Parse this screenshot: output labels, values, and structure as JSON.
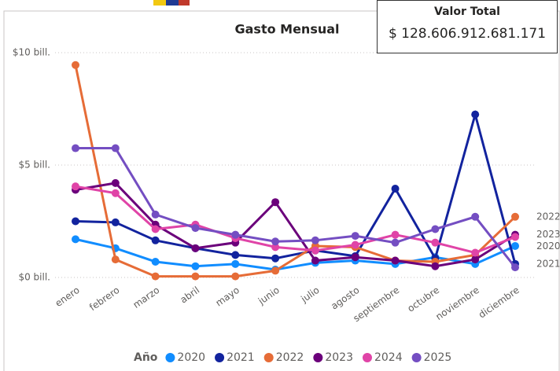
{
  "card": {
    "title": "Valor Total",
    "value": "$ 128.606.912.681.171"
  },
  "chart_data": {
    "type": "line",
    "title": "Gasto Mensual",
    "categories": [
      "enero",
      "febrero",
      "marzo",
      "abril",
      "mayo",
      "junio",
      "julio",
      "agosto",
      "septiembre",
      "octubre",
      "noviembre",
      "diciembre"
    ],
    "series": [
      {
        "name": "2020",
        "color": "#118dff",
        "values": [
          1.7,
          1.3,
          0.7,
          0.5,
          0.6,
          0.35,
          0.65,
          0.75,
          0.6,
          0.9,
          0.6,
          1.4
        ]
      },
      {
        "name": "2021",
        "color": "#12239e",
        "values": [
          2.5,
          2.45,
          1.65,
          1.3,
          1.0,
          0.85,
          1.2,
          0.95,
          3.95,
          0.85,
          7.25,
          0.6
        ]
      },
      {
        "name": "2022",
        "color": "#e66c37",
        "values": [
          9.45,
          0.8,
          0.05,
          0.05,
          0.05,
          0.3,
          1.4,
          1.35,
          0.75,
          0.7,
          1.0,
          2.7
        ]
      },
      {
        "name": "2023",
        "color": "#6b007b",
        "values": [
          3.9,
          4.2,
          2.35,
          1.3,
          1.55,
          3.35,
          0.75,
          0.9,
          0.75,
          0.5,
          0.8,
          1.9
        ]
      },
      {
        "name": "2024",
        "color": "#e044a7",
        "values": [
          4.05,
          3.75,
          2.15,
          2.35,
          1.75,
          1.35,
          1.2,
          1.45,
          1.9,
          1.55,
          1.1,
          1.8
        ]
      },
      {
        "name": "2025",
        "color": "#744ec2",
        "values": [
          5.75,
          5.75,
          2.8,
          2.2,
          1.9,
          1.6,
          1.65,
          1.85,
          1.55,
          2.15,
          2.7,
          0.45
        ]
      }
    ],
    "ylim": [
      0,
      10
    ],
    "yticks": [
      {
        "value": 0,
        "label": "$0 bill."
      },
      {
        "value": 5,
        "label": "$5 bill."
      },
      {
        "value": 10,
        "label": "$10 bill."
      }
    ],
    "grid": true,
    "legend_title": "Año",
    "end_labels": [
      "2022",
      "2023",
      "2020",
      "2021"
    ]
  }
}
